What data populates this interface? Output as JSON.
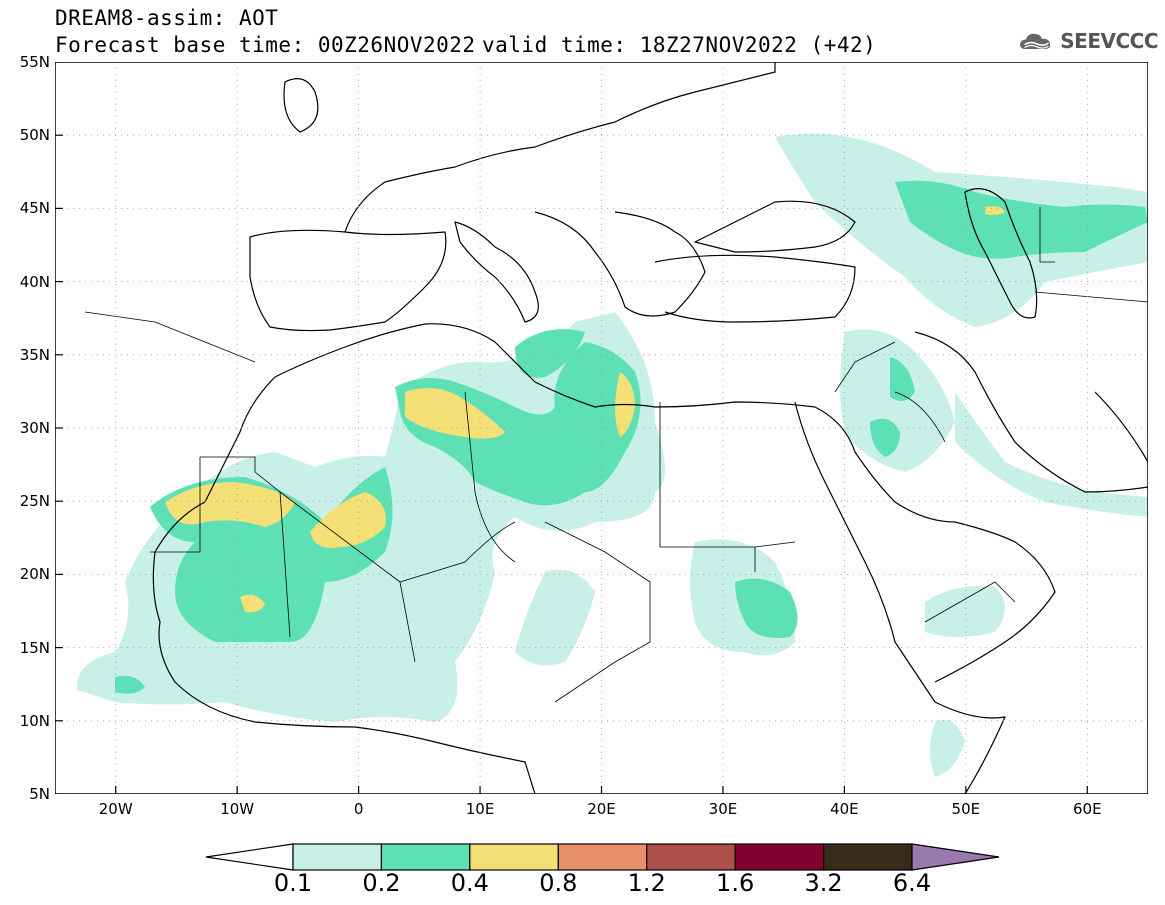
{
  "header": {
    "title_line1": "DREAM8-assim: AOT",
    "title_line2": "Forecast base time: 00Z26NOV2022",
    "valid_time": "valid time: 18Z27NOV2022 (+42)",
    "logo_text": "SEEVCCC"
  },
  "map": {
    "lon_range": [
      -25,
      65
    ],
    "lat_range": [
      5,
      55
    ],
    "lat_labels": [
      {
        "lat": 55,
        "text": "55N"
      },
      {
        "lat": 50,
        "text": "50N"
      },
      {
        "lat": 45,
        "text": "45N"
      },
      {
        "lat": 40,
        "text": "40N"
      },
      {
        "lat": 35,
        "text": "35N"
      },
      {
        "lat": 30,
        "text": "30N"
      },
      {
        "lat": 25,
        "text": "25N"
      },
      {
        "lat": 20,
        "text": "20N"
      },
      {
        "lat": 15,
        "text": "15N"
      },
      {
        "lat": 10,
        "text": "10N"
      },
      {
        "lat": 5,
        "text": "5N"
      }
    ],
    "lon_labels": [
      {
        "lon": -20,
        "text": "20W"
      },
      {
        "lon": -10,
        "text": "10W"
      },
      {
        "lon": 0,
        "text": "0"
      },
      {
        "lon": 10,
        "text": "10E"
      },
      {
        "lon": 20,
        "text": "20E"
      },
      {
        "lon": 30,
        "text": "30E"
      },
      {
        "lon": 40,
        "text": "40E"
      },
      {
        "lon": 50,
        "text": "50E"
      },
      {
        "lon": 60,
        "text": "60E"
      }
    ]
  },
  "colorbar": {
    "colors": [
      "#c8f0e8",
      "#5ce0b4",
      "#f5e078",
      "#e8906a",
      "#b0504a",
      "#800030",
      "#3a2a1a",
      "#9a78b0"
    ],
    "labels": [
      "0.1",
      "0.2",
      "0.4",
      "0.8",
      "1.2",
      "1.6",
      "3.2",
      "6.4"
    ]
  }
}
